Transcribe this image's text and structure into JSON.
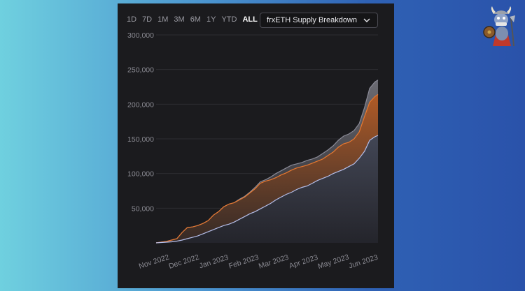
{
  "timeframes": [
    "1D",
    "7D",
    "1M",
    "3M",
    "6M",
    "1Y",
    "YTD",
    "ALL"
  ],
  "active_timeframe": "ALL",
  "dropdown": {
    "selected": "frxETH Supply Breakdown",
    "icon": "chevron-down-icon"
  },
  "mascot_icon": "viking-mascot-icon",
  "chart_data": {
    "type": "area",
    "title": "",
    "xlabel": "",
    "ylabel": "",
    "ylim": [
      0,
      300000
    ],
    "yticks": [
      50000,
      100000,
      150000,
      200000,
      250000,
      300000
    ],
    "ytick_labels": [
      "50,000",
      "100,000",
      "150,000",
      "200,000",
      "250,000",
      "300,000"
    ],
    "xtick_labels": [
      "Nov 2022",
      "Dec 2022",
      "Jan 2023",
      "Feb 2023",
      "Mar 2023",
      "Apr 2023",
      "May 2023",
      "Jun 2023"
    ],
    "grid": true,
    "x": [
      0,
      5,
      10,
      15,
      20,
      25,
      30,
      35,
      40,
      45,
      50,
      55,
      60,
      65,
      70,
      75,
      80,
      85,
      90,
      95,
      100,
      105,
      110,
      115,
      120,
      125,
      130,
      135,
      140,
      145,
      150,
      155,
      160,
      165,
      170,
      175,
      180,
      185,
      190,
      195,
      200,
      205,
      210,
      213
    ],
    "series": [
      {
        "color": "#8a8a96",
        "values": [
          0,
          1000,
          2000,
          4000,
          6000,
          15000,
          22000,
          23000,
          25000,
          28000,
          32000,
          40000,
          45000,
          52000,
          56000,
          58000,
          63000,
          67000,
          73000,
          80000,
          88000,
          91000,
          95000,
          100000,
          104000,
          108000,
          112000,
          114000,
          116000,
          119000,
          121000,
          124000,
          129000,
          134000,
          140000,
          148000,
          154000,
          157000,
          162000,
          172000,
          195000,
          223000,
          232000,
          235000
        ]
      },
      {
        "color": "#e8782f",
        "values": [
          0,
          1000,
          2000,
          4000,
          6000,
          15000,
          22000,
          23000,
          25000,
          28000,
          32000,
          40000,
          45000,
          52000,
          56000,
          58000,
          62000,
          66000,
          72000,
          78000,
          86000,
          89000,
          91000,
          94000,
          98000,
          101000,
          105000,
          108000,
          110000,
          112000,
          115000,
          118000,
          121000,
          126000,
          131000,
          138000,
          143000,
          145000,
          150000,
          160000,
          182000,
          203000,
          211000,
          214000
        ]
      },
      {
        "color": "#b4bde8",
        "values": [
          0,
          500,
          1000,
          1500,
          2500,
          4000,
          6000,
          8000,
          10000,
          13000,
          16000,
          19000,
          22000,
          25000,
          27000,
          30000,
          34000,
          38000,
          42000,
          45000,
          49000,
          53000,
          57000,
          62000,
          66000,
          70000,
          73000,
          77000,
          80000,
          82000,
          86000,
          90000,
          93000,
          96000,
          100000,
          103000,
          106000,
          110000,
          114000,
          122000,
          132000,
          148000,
          153000,
          155000
        ]
      }
    ]
  }
}
